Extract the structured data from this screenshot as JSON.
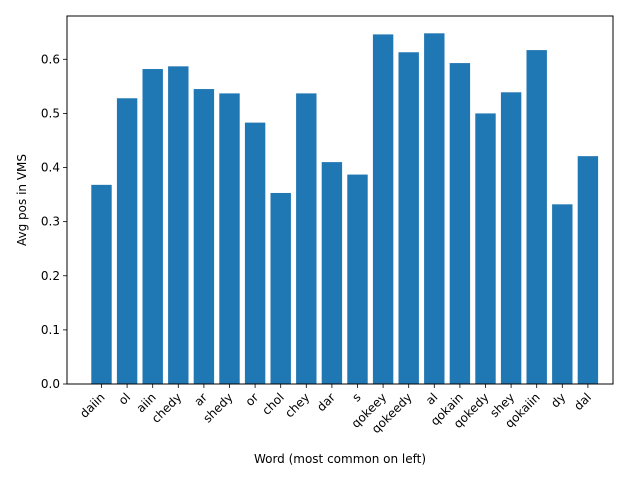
{
  "chart_data": {
    "type": "bar",
    "title": "",
    "xlabel": "Word (most common on left)",
    "ylabel": "Avg pos in VMS",
    "ylim": [
      0,
      0.68
    ],
    "yticks": [
      "0.0",
      "0.1",
      "0.2",
      "0.3",
      "0.4",
      "0.5",
      "0.6"
    ],
    "grid": false,
    "bar_color": "#1f77b4",
    "categories": [
      "daiin",
      "ol",
      "aiin",
      "chedy",
      "ar",
      "shedy",
      "or",
      "chol",
      "chey",
      "dar",
      "s",
      "qokeey",
      "qokeedy",
      "al",
      "qokain",
      "qokedy",
      "shey",
      "qokaiin",
      "dy",
      "dal"
    ],
    "values": [
      0.368,
      0.528,
      0.582,
      0.587,
      0.545,
      0.537,
      0.483,
      0.353,
      0.537,
      0.41,
      0.387,
      0.646,
      0.613,
      0.648,
      0.593,
      0.5,
      0.539,
      0.617,
      0.332,
      0.421
    ]
  }
}
